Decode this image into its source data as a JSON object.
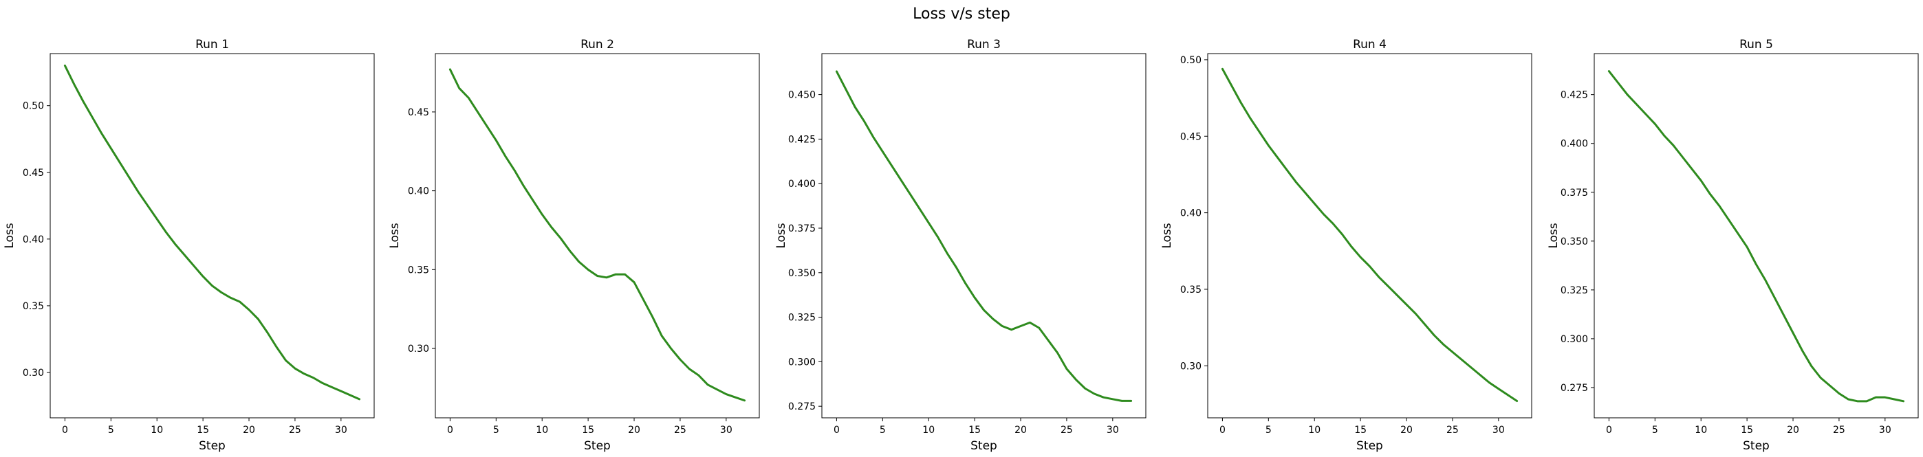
{
  "figure_title": "Loss v/s step",
  "chart_data": [
    {
      "type": "line",
      "title": "Run 1",
      "xlabel": "Step",
      "ylabel": "Loss",
      "xlim": [
        -1.6,
        33.6
      ],
      "ylim": [
        0.266,
        0.539
      ],
      "xticks": [
        0,
        5,
        10,
        15,
        20,
        25,
        30
      ],
      "xtick_labels": [
        "0",
        "5",
        "10",
        "15",
        "20",
        "25",
        "30"
      ],
      "yticks": [
        0.3,
        0.35,
        0.4,
        0.45,
        0.5
      ],
      "ytick_labels": [
        "0.30",
        "0.35",
        "0.40",
        "0.45",
        "0.50"
      ],
      "grid": false,
      "line_color": "#2e8b1e",
      "series": [
        {
          "x": [
            0,
            1,
            2,
            3,
            4,
            5,
            6,
            7,
            8,
            9,
            10,
            11,
            12,
            13,
            14,
            15,
            16,
            17,
            18,
            19,
            20,
            21,
            22,
            23,
            24,
            25,
            26,
            27,
            28,
            29,
            30,
            31,
            32
          ],
          "y": [
            0.53,
            0.516,
            0.503,
            0.491,
            0.479,
            0.468,
            0.457,
            0.446,
            0.435,
            0.425,
            0.415,
            0.405,
            0.396,
            0.388,
            0.38,
            0.372,
            0.365,
            0.36,
            0.356,
            0.353,
            0.347,
            0.34,
            0.33,
            0.319,
            0.309,
            0.303,
            0.299,
            0.296,
            0.292,
            0.289,
            0.286,
            0.283,
            0.28
          ]
        }
      ]
    },
    {
      "type": "line",
      "title": "Run 2",
      "xlabel": "Step",
      "ylabel": "Loss",
      "xlim": [
        -1.6,
        33.6
      ],
      "ylim": [
        0.256,
        0.487
      ],
      "xticks": [
        0,
        5,
        10,
        15,
        20,
        25,
        30
      ],
      "xtick_labels": [
        "0",
        "5",
        "10",
        "15",
        "20",
        "25",
        "30"
      ],
      "yticks": [
        0.3,
        0.35,
        0.4,
        0.45
      ],
      "ytick_labels": [
        "0.30",
        "0.35",
        "0.40",
        "0.45"
      ],
      "grid": false,
      "line_color": "#2e8b1e",
      "series": [
        {
          "x": [
            0,
            1,
            2,
            3,
            4,
            5,
            6,
            7,
            8,
            9,
            10,
            11,
            12,
            13,
            14,
            15,
            16,
            17,
            18,
            19,
            20,
            21,
            22,
            23,
            24,
            25,
            26,
            27,
            28,
            29,
            30,
            31,
            32
          ],
          "y": [
            0.477,
            0.465,
            0.459,
            0.45,
            0.441,
            0.432,
            0.422,
            0.413,
            0.403,
            0.394,
            0.385,
            0.377,
            0.37,
            0.362,
            0.355,
            0.35,
            0.346,
            0.345,
            0.347,
            0.347,
            0.342,
            0.331,
            0.32,
            0.308,
            0.3,
            0.293,
            0.287,
            0.283,
            0.277,
            0.274,
            0.271,
            0.269,
            0.267
          ]
        }
      ]
    },
    {
      "type": "line",
      "title": "Run 3",
      "xlabel": "Step",
      "ylabel": "Loss",
      "xlim": [
        -1.6,
        33.6
      ],
      "ylim": [
        0.2685,
        0.473
      ],
      "xticks": [
        0,
        5,
        10,
        15,
        20,
        25,
        30
      ],
      "xtick_labels": [
        "0",
        "5",
        "10",
        "15",
        "20",
        "25",
        "30"
      ],
      "yticks": [
        0.275,
        0.3,
        0.325,
        0.35,
        0.375,
        0.4,
        0.425,
        0.45
      ],
      "ytick_labels": [
        "0.275",
        "0.300",
        "0.325",
        "0.350",
        "0.375",
        "0.400",
        "0.425",
        "0.450"
      ],
      "grid": false,
      "line_color": "#2e8b1e",
      "series": [
        {
          "x": [
            0,
            1,
            2,
            3,
            4,
            5,
            6,
            7,
            8,
            9,
            10,
            11,
            12,
            13,
            14,
            15,
            16,
            17,
            18,
            19,
            20,
            21,
            22,
            23,
            24,
            25,
            26,
            27,
            28,
            29,
            30,
            31,
            32
          ],
          "y": [
            0.463,
            0.453,
            0.443,
            0.435,
            0.426,
            0.418,
            0.41,
            0.402,
            0.394,
            0.386,
            0.378,
            0.37,
            0.361,
            0.353,
            0.344,
            0.336,
            0.329,
            0.324,
            0.32,
            0.318,
            0.32,
            0.322,
            0.319,
            0.312,
            0.305,
            0.296,
            0.29,
            0.285,
            0.282,
            0.28,
            0.279,
            0.278,
            0.278
          ]
        }
      ]
    },
    {
      "type": "line",
      "title": "Run 4",
      "xlabel": "Step",
      "ylabel": "Loss",
      "xlim": [
        -1.6,
        33.6
      ],
      "ylim": [
        0.266,
        0.504
      ],
      "xticks": [
        0,
        5,
        10,
        15,
        20,
        25,
        30
      ],
      "xtick_labels": [
        "0",
        "5",
        "10",
        "15",
        "20",
        "25",
        "30"
      ],
      "yticks": [
        0.3,
        0.35,
        0.4,
        0.45,
        0.5
      ],
      "ytick_labels": [
        "0.30",
        "0.35",
        "0.40",
        "0.45",
        "0.50"
      ],
      "grid": false,
      "line_color": "#2e8b1e",
      "series": [
        {
          "x": [
            0,
            1,
            2,
            3,
            4,
            5,
            6,
            7,
            8,
            9,
            10,
            11,
            12,
            13,
            14,
            15,
            16,
            17,
            18,
            19,
            20,
            21,
            22,
            23,
            24,
            25,
            26,
            27,
            28,
            29,
            30,
            31,
            32
          ],
          "y": [
            0.494,
            0.483,
            0.472,
            0.462,
            0.453,
            0.444,
            0.436,
            0.428,
            0.42,
            0.413,
            0.406,
            0.399,
            0.393,
            0.386,
            0.378,
            0.371,
            0.365,
            0.358,
            0.352,
            0.346,
            0.34,
            0.334,
            0.327,
            0.32,
            0.314,
            0.309,
            0.304,
            0.299,
            0.294,
            0.289,
            0.285,
            0.281,
            0.277
          ]
        }
      ]
    },
    {
      "type": "line",
      "title": "Run 5",
      "xlabel": "Step",
      "ylabel": "Loss",
      "xlim": [
        -1.6,
        33.6
      ],
      "ylim": [
        0.2595,
        0.446
      ],
      "xticks": [
        0,
        5,
        10,
        15,
        20,
        25,
        30
      ],
      "xtick_labels": [
        "0",
        "5",
        "10",
        "15",
        "20",
        "25",
        "30"
      ],
      "yticks": [
        0.275,
        0.3,
        0.325,
        0.35,
        0.375,
        0.4,
        0.425
      ],
      "ytick_labels": [
        "0.275",
        "0.300",
        "0.325",
        "0.350",
        "0.375",
        "0.400",
        "0.425"
      ],
      "grid": false,
      "line_color": "#2e8b1e",
      "series": [
        {
          "x": [
            0,
            1,
            2,
            3,
            4,
            5,
            6,
            7,
            8,
            9,
            10,
            11,
            12,
            13,
            14,
            15,
            16,
            17,
            18,
            19,
            20,
            21,
            22,
            23,
            24,
            25,
            26,
            27,
            28,
            29,
            30,
            31,
            32
          ],
          "y": [
            0.437,
            0.431,
            0.425,
            0.42,
            0.415,
            0.41,
            0.404,
            0.399,
            0.393,
            0.387,
            0.381,
            0.374,
            0.368,
            0.361,
            0.354,
            0.347,
            0.338,
            0.33,
            0.321,
            0.312,
            0.303,
            0.294,
            0.286,
            0.28,
            0.276,
            0.272,
            0.269,
            0.268,
            0.268,
            0.27,
            0.27,
            0.269,
            0.268
          ]
        }
      ]
    }
  ]
}
